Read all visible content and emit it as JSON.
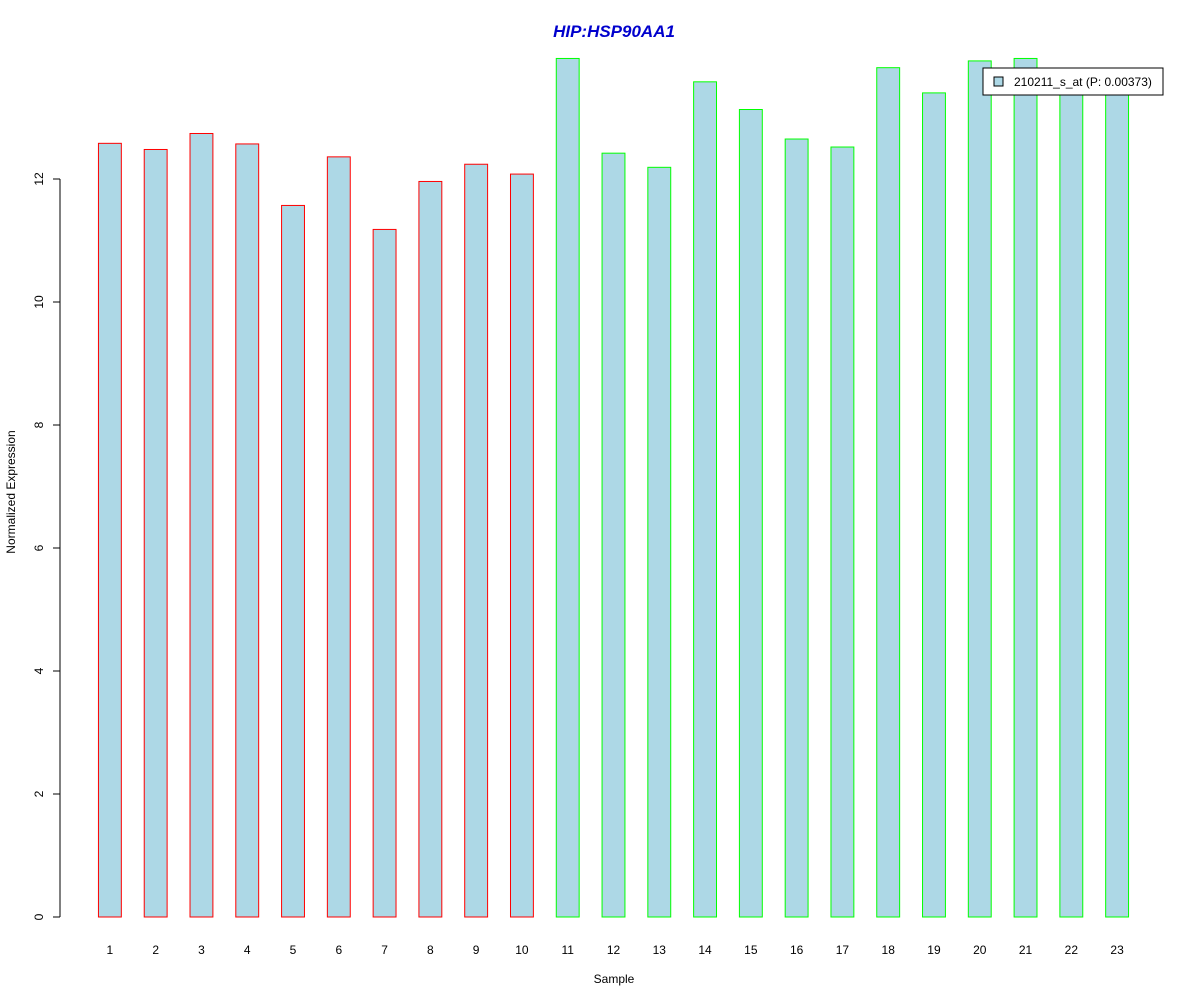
{
  "chart_data": {
    "type": "bar",
    "title": "HIP:HSP90AA1",
    "xlabel": "Sample",
    "ylabel": "Normalized Expression",
    "ylim": [
      0,
      14
    ],
    "yticks": [
      0,
      2,
      4,
      6,
      8,
      10,
      12
    ],
    "grid": false,
    "legend_position": "top-right",
    "categories": [
      "1",
      "2",
      "3",
      "4",
      "5",
      "6",
      "7",
      "8",
      "9",
      "10",
      "11",
      "12",
      "13",
      "14",
      "15",
      "16",
      "17",
      "18",
      "19",
      "20",
      "21",
      "22",
      "23"
    ],
    "series": [
      {
        "name": "210211_s_at (P: 0.00373)",
        "values": [
          12.58,
          12.48,
          12.74,
          12.57,
          11.57,
          12.36,
          11.18,
          11.96,
          12.24,
          12.08,
          13.96,
          12.42,
          12.19,
          13.58,
          13.13,
          12.65,
          12.52,
          13.81,
          13.4,
          13.92,
          13.96,
          13.59,
          13.59
        ],
        "groups": [
          "red",
          "red",
          "red",
          "red",
          "red",
          "red",
          "red",
          "red",
          "red",
          "red",
          "green",
          "green",
          "green",
          "green",
          "green",
          "green",
          "green",
          "green",
          "green",
          "green",
          "green",
          "green",
          "green"
        ]
      }
    ],
    "colors": {
      "bar_fill": "#add8e6",
      "group_red": "#ff0000",
      "group_green": "#00ff00",
      "title": "#0000cd"
    }
  }
}
